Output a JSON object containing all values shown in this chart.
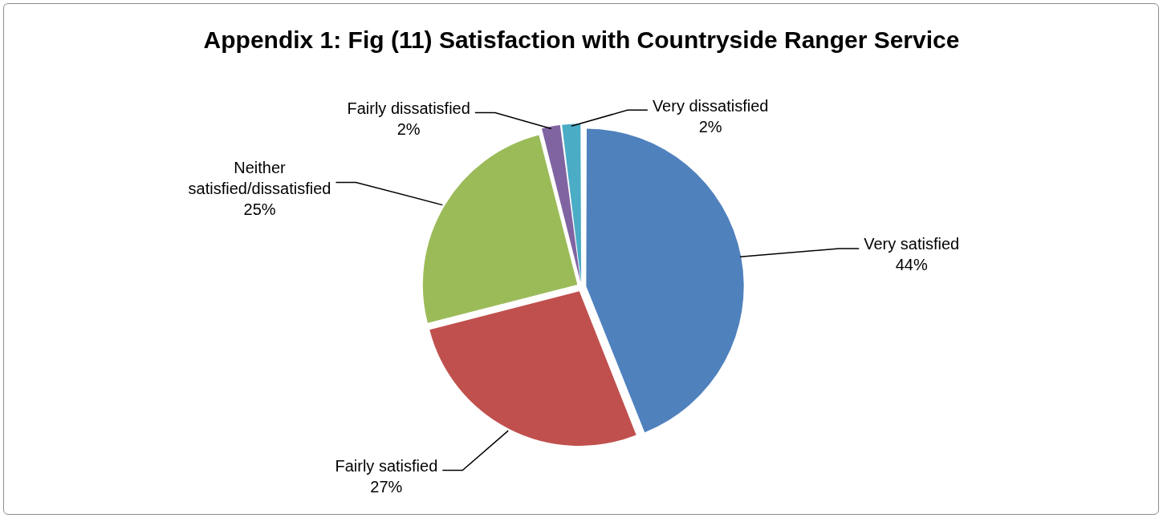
{
  "chart_data": {
    "type": "pie",
    "title": "Appendix 1: Fig (11) Satisfaction with Countryside Ranger Service",
    "categories": [
      "Very satisfied",
      "Fairly satisfied",
      "Neither satisfied/dissatisfied",
      "Fairly dissatisfied",
      "Very dissatisfied"
    ],
    "values": [
      44,
      27,
      25,
      2,
      2
    ],
    "colors": [
      "#4f81bd",
      "#c0504d",
      "#9bbb59",
      "#8064a2",
      "#4bacc6"
    ],
    "value_labels": [
      "44%",
      "27%",
      "25%",
      "2%",
      "2%"
    ],
    "legend": false
  }
}
